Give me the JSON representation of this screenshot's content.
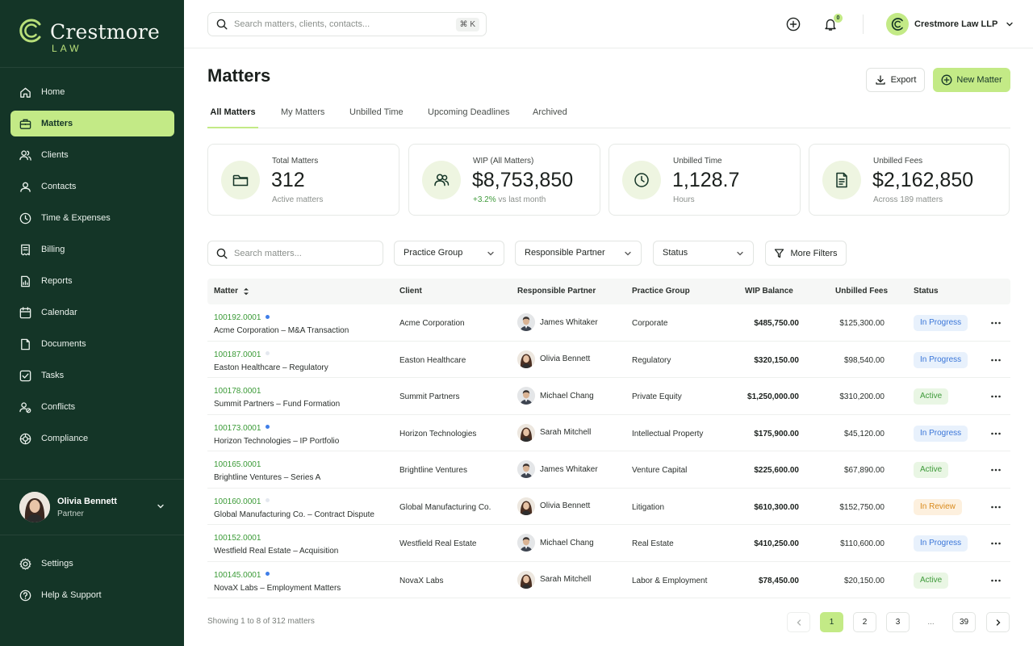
{
  "brand": {
    "name": "Crestmore",
    "sub": "LAW"
  },
  "nav": [
    {
      "label": "Home",
      "icon": "home-icon"
    },
    {
      "label": "Matters",
      "icon": "briefcase-icon",
      "active": true
    },
    {
      "label": "Clients",
      "icon": "users-icon"
    },
    {
      "label": "Contacts",
      "icon": "contacts-icon"
    },
    {
      "label": "Time & Expenses",
      "icon": "clock-icon"
    },
    {
      "label": "Billing",
      "icon": "receipt-icon"
    },
    {
      "label": "Reports",
      "icon": "reports-icon"
    },
    {
      "label": "Calendar",
      "icon": "calendar-icon"
    },
    {
      "label": "Documents",
      "icon": "document-icon"
    },
    {
      "label": "Tasks",
      "icon": "checkbox-icon"
    },
    {
      "label": "Conflicts",
      "icon": "conflicts-icon"
    },
    {
      "label": "Compliance",
      "icon": "compliance-icon"
    }
  ],
  "user": {
    "name": "Olivia Bennett",
    "role": "Partner"
  },
  "bottom_nav": [
    {
      "label": "Settings",
      "icon": "gear-icon"
    },
    {
      "label": "Help & Support",
      "icon": "help-icon"
    }
  ],
  "topbar": {
    "search_placeholder": "Search matters, clients, contacts...",
    "shortcut": "⌘ K",
    "notifications": "0",
    "firm": "Crestmore Law LLP"
  },
  "page": {
    "title": "Matters",
    "export_label": "Export",
    "new_label": "New Matter"
  },
  "tabs": [
    "All Matters",
    "My Matters",
    "Unbilled Time",
    "Upcoming Deadlines",
    "Archived"
  ],
  "kpis": [
    {
      "label": "Total Matters",
      "value": "312",
      "sub": "Active matters",
      "icon": "folder-icon"
    },
    {
      "label": "WIP (All Matters)",
      "value": "$8,753,850",
      "sub_pos": "+3.2%",
      "sub": " vs last month",
      "icon": "people-icon"
    },
    {
      "label": "Unbilled Time",
      "value": "1,128.7",
      "sub": "Hours",
      "icon": "clock-icon"
    },
    {
      "label": "Unbilled Fees",
      "value": "$2,162,850",
      "sub": "Across 189 matters",
      "icon": "invoice-icon"
    }
  ],
  "filters": {
    "search_placeholder": "Search matters...",
    "practice": "Practice Group",
    "partner": "Responsible Partner",
    "status": "Status",
    "more": "More Filters"
  },
  "columns": {
    "matter": "Matter",
    "client": "Client",
    "partner": "Responsible Partner",
    "practice": "Practice Group",
    "wip": "WIP Balance",
    "fees": "Unbilled Fees",
    "status": "Status"
  },
  "rows": [
    {
      "number": "100192.0001",
      "dot": "#3f7ee8",
      "name": "Acme Corporation – M&A Transaction",
      "client": "Acme Corporation",
      "partner": "James Whitaker",
      "gender": "m",
      "practice": "Corporate",
      "wip": "$485,750.00",
      "fees": "$125,300.00",
      "status": "In Progress"
    },
    {
      "number": "100187.0001",
      "dot": "#e4e8ef",
      "name": "Easton Healthcare – Regulatory",
      "client": "Easton Healthcare",
      "partner": "Olivia Bennett",
      "gender": "f",
      "practice": "Regulatory",
      "wip": "$320,150.00",
      "fees": "$98,540.00",
      "status": "In Progress"
    },
    {
      "number": "100178.0001",
      "dot": "",
      "name": "Summit Partners – Fund Formation",
      "client": "Summit Partners",
      "partner": "Michael Chang",
      "gender": "m",
      "practice": "Private Equity",
      "wip": "$1,250,000.00",
      "fees": "$310,200.00",
      "status": "Active"
    },
    {
      "number": "100173.0001",
      "dot": "#3f7ee8",
      "name": "Horizon Technologies – IP Portfolio",
      "client": "Horizon Technologies",
      "partner": "Sarah Mitchell",
      "gender": "f",
      "practice": "Intellectual Property",
      "wip": "$175,900.00",
      "fees": "$45,120.00",
      "status": "In Progress"
    },
    {
      "number": "100165.0001",
      "dot": "",
      "name": "Brightline Ventures – Series A",
      "client": "Brightline Ventures",
      "partner": "James Whitaker",
      "gender": "m",
      "practice": "Venture Capital",
      "wip": "$225,600.00",
      "fees": "$67,890.00",
      "status": "Active"
    },
    {
      "number": "100160.0001",
      "dot": "#e4e8ef",
      "name": "Global Manufacturing Co. – Contract Dispute",
      "client": "Global Manufacturing Co.",
      "partner": "Olivia Bennett",
      "gender": "f",
      "practice": "Litigation",
      "wip": "$610,300.00",
      "fees": "$152,750.00",
      "status": "In Review"
    },
    {
      "number": "100152.0001",
      "dot": "",
      "name": "Westfield Real Estate – Acquisition",
      "client": "Westfield Real Estate",
      "partner": "Michael Chang",
      "gender": "m",
      "practice": "Real Estate",
      "wip": "$410,250.00",
      "fees": "$110,600.00",
      "status": "In Progress"
    },
    {
      "number": "100145.0001",
      "dot": "#3f7ee8",
      "name": "NovaX Labs – Employment Matters",
      "client": "NovaX Labs",
      "partner": "Sarah Mitchell",
      "gender": "f",
      "practice": "Labor & Employment",
      "wip": "$78,450.00",
      "fees": "$20,150.00",
      "status": "Active"
    }
  ],
  "status_colors": {
    "In Progress": {
      "bg": "#e8f1fc",
      "fg": "#3a76d8"
    },
    "Active": {
      "bg": "#e9f6e4",
      "fg": "#3e9a3a"
    },
    "In Review": {
      "bg": "#fdf0de",
      "fg": "#d98a1c"
    }
  },
  "pagination": {
    "showing": "Showing 1 to 8 of 312 matters",
    "pages": [
      "1",
      "2",
      "3",
      "...",
      "39"
    ],
    "current": "1"
  }
}
